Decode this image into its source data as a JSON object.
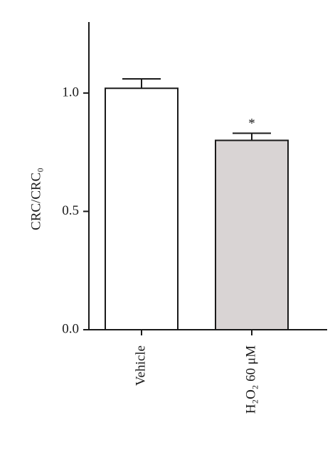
{
  "chart_data": {
    "type": "bar",
    "y_label": "CRC/CRC₀",
    "categories": [
      "Vehicle",
      "H₂O₂ 60 μM"
    ],
    "values": [
      1.02,
      0.8
    ],
    "errors": [
      0.04,
      0.03
    ],
    "colors": [
      "#ffffff",
      "#d9d4d4"
    ],
    "annotations": [
      "",
      "*"
    ],
    "ylim": [
      0,
      1.3
    ],
    "yticks": [
      {
        "value": 0,
        "label": "0.0"
      },
      0.5,
      {
        "value": 1,
        "label": "1.0"
      }
    ],
    "grid": false
  }
}
